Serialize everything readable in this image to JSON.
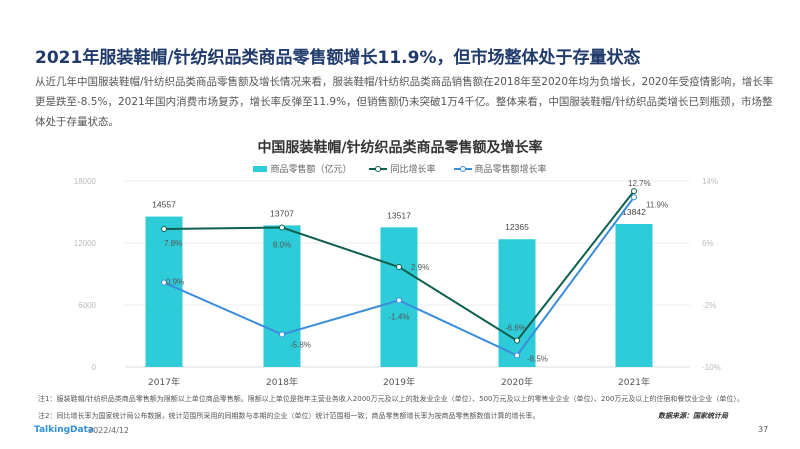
{
  "page": {
    "title": "2021年服装鞋帽/针纺织品类商品零售额增长11.9%，但市场整体处于存量状态",
    "summary": "从近几年中国服装鞋帽/针纺织品类商品零售额及增长情况来看，服装鞋帽/针纺织品类商品销售额在2018年至2020年均为负增长，2020年受疫情影响，增长率更是跌至-8.5%，2021年国内消费市场复苏，增长率反弹至11.9%，但销售额仍未突破1万4千亿。整体来看，中国服装鞋帽/针纺织品类增长已到瓶颈，市场整体处于存量状态。",
    "notes": [
      "注1：服装鞋帽/针纺织品类商品零售额为限额以上单位商品零售额。限额以上单位是指年主营业务收入2000万元及以上的批发业企业（单位）、500万元及以上的零售业企业（单位）、200万元及以上的住宿和餐饮业企业（单位）。",
      "注2：同比增长率为国家统计局公布数据，统计范围所采用的同期数与本期的企业（单位）统计范围相一致；商品零售额增长率为按商品零售额数值计算的增长率。"
    ],
    "source": "数据来源：国家统计局",
    "brand": "TalkingData",
    "date": "2022/4/12",
    "page_number": "37"
  },
  "colors": {
    "bar": "#2ecbd8",
    "yoy_line": "#0d5f4e",
    "retail_growth_line": "#3b8ddb",
    "title": "#1f3a6b",
    "grid": "#eeeeee"
  },
  "chart_data": {
    "type": "bar",
    "title": "中国服装鞋帽/针纺织品类商品零售额及增长率",
    "categories": [
      "2017年",
      "2018年",
      "2019年",
      "2020年",
      "2021年"
    ],
    "series": [
      {
        "name": "商品零售额（亿元）",
        "type": "bar",
        "axis": "left",
        "values": [
          14557,
          13707,
          13517,
          12365,
          13842
        ],
        "labels": [
          "14557",
          "13707",
          "13517",
          "12365",
          "13842"
        ]
      },
      {
        "name": "同比增长率",
        "type": "line",
        "axis": "right",
        "values": [
          7.8,
          8.0,
          2.9,
          -6.6,
          12.7
        ],
        "labels": [
          "7.8%",
          "8.0%",
          "2.9%",
          "-6.6%",
          "12.7%"
        ]
      },
      {
        "name": "商品零售额增长率",
        "type": "line",
        "axis": "right",
        "values": [
          0.9,
          -5.8,
          -1.4,
          -8.5,
          11.9
        ],
        "labels": [
          "0.9%",
          "-5.8%",
          "-1.4%",
          "-8.5%",
          "11.9%"
        ]
      }
    ],
    "left_axis": {
      "ticks": [
        "0",
        "6000",
        "12000",
        "18000"
      ],
      "ylim": [
        0,
        18000
      ]
    },
    "right_axis": {
      "ticks": [
        "-10%",
        "-2%",
        "6%",
        "14%"
      ],
      "ylim": [
        -10,
        14
      ]
    },
    "xlabel": "",
    "ylabel": "",
    "grid": true,
    "legend_position": "top"
  }
}
